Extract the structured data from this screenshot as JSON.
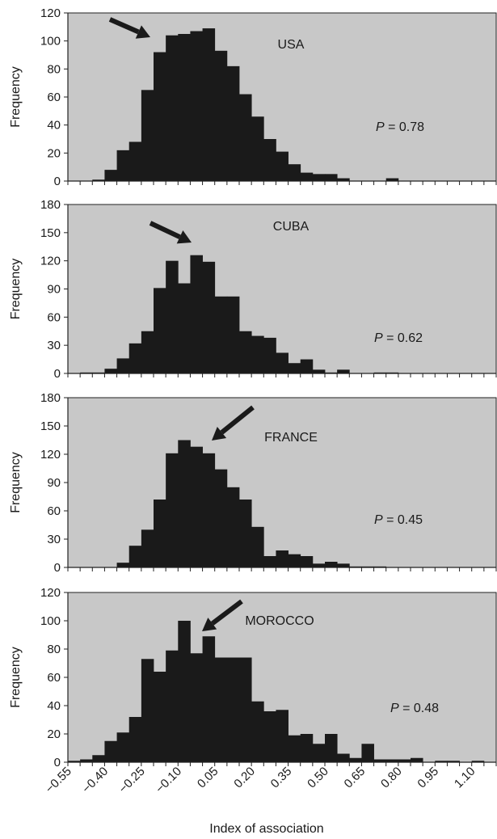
{
  "xlabel": "Index of association",
  "x_tick_labels": [
    "−0.55",
    "−0.40",
    "−0.25",
    "−0.10",
    "0.05",
    "0.20",
    "0.35",
    "0.50",
    "0.65",
    "0.80",
    "0.95",
    "1.10"
  ],
  "x_tick_values": [
    -0.55,
    -0.4,
    -0.25,
    -0.1,
    0.05,
    0.2,
    0.35,
    0.5,
    0.65,
    0.8,
    0.95,
    1.1
  ],
  "bin_width": 0.05,
  "bin_start": -0.55,
  "colors": {
    "bars": "#1a1a1a",
    "plot_background": "#c8c8c8"
  },
  "chart_data": [
    {
      "type": "bar",
      "panel": "USA",
      "ylabel": "Frequency",
      "ylim": [
        0,
        120
      ],
      "y_ticks": [
        0,
        20,
        40,
        60,
        80,
        100,
        120
      ],
      "y_tick_labels": [
        "0",
        "20",
        "40",
        "60",
        "80",
        "100",
        "120"
      ],
      "label": "USA",
      "p_prefix": "P",
      "p_value": "= 0.78",
      "arrow_direction": "down-right",
      "values": [
        0,
        0,
        1,
        8,
        22,
        28,
        65,
        92,
        104,
        105,
        107,
        109,
        93,
        82,
        62,
        46,
        30,
        21,
        12,
        6,
        5,
        5,
        2,
        0,
        0,
        0,
        2,
        0,
        0,
        0,
        0,
        0
      ]
    },
    {
      "type": "bar",
      "panel": "CUBA",
      "ylabel": "Frequency",
      "ylim": [
        0,
        180
      ],
      "y_ticks": [
        0,
        30,
        60,
        90,
        120,
        150,
        180
      ],
      "y_tick_labels": [
        "0",
        "30",
        "60",
        "90",
        "120",
        "150",
        "180"
      ],
      "label": "CUBA",
      "p_prefix": "P",
      "p_value": "= 0.62",
      "arrow_direction": "down-right",
      "values": [
        0,
        1,
        1,
        5,
        16,
        32,
        45,
        91,
        120,
        96,
        126,
        119,
        82,
        82,
        45,
        40,
        38,
        22,
        11,
        15,
        4,
        1,
        4,
        0,
        0,
        1,
        1,
        0,
        0,
        0,
        0,
        0
      ]
    },
    {
      "type": "bar",
      "panel": "FRANCE",
      "ylabel": "Frequency",
      "ylim": [
        0,
        180
      ],
      "y_ticks": [
        0,
        30,
        60,
        90,
        120,
        150,
        180
      ],
      "y_tick_labels": [
        "0",
        "30",
        "60",
        "90",
        "120",
        "150",
        "180"
      ],
      "label": "FRANCE",
      "p_prefix": "P",
      "p_value": "= 0.45",
      "arrow_direction": "down-left",
      "values": [
        0,
        0,
        0,
        0,
        5,
        23,
        40,
        72,
        121,
        135,
        128,
        121,
        104,
        85,
        72,
        43,
        12,
        18,
        14,
        12,
        4,
        6,
        4,
        1,
        1,
        1,
        0,
        0,
        0,
        0,
        0,
        0
      ]
    },
    {
      "type": "bar",
      "panel": "MOROCCO",
      "ylabel": "Frequency",
      "ylim": [
        0,
        120
      ],
      "y_ticks": [
        0,
        20,
        40,
        60,
        80,
        100,
        120
      ],
      "y_tick_labels": [
        "0",
        "20",
        "40",
        "60",
        "80",
        "100",
        "120"
      ],
      "label": "MOROCCO",
      "p_prefix": "P",
      "p_value": "= 0.48",
      "arrow_direction": "down-left",
      "values": [
        1,
        2,
        5,
        15,
        21,
        32,
        73,
        64,
        79,
        100,
        77,
        89,
        74,
        74,
        74,
        43,
        36,
        37,
        19,
        20,
        13,
        20,
        6,
        3,
        13,
        2,
        2,
        2,
        3,
        0,
        1,
        1,
        0,
        1
      ]
    }
  ]
}
